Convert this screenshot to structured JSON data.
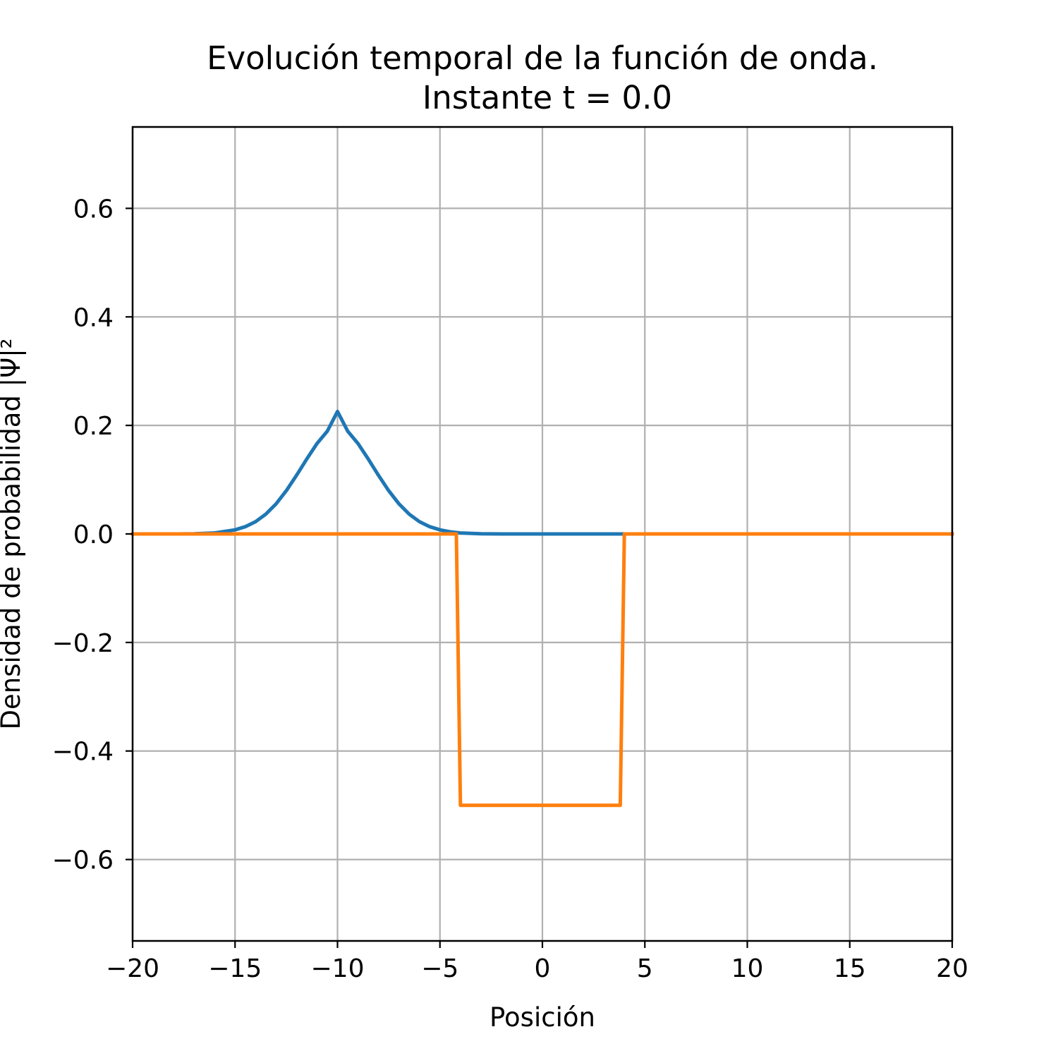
{
  "chart_data": {
    "type": "line",
    "title": "Evolución temporal de la función de onda.",
    "subtitle": "Instante t = 0.0",
    "xlabel": "Posición",
    "ylabel": "Densidad de probabilidad |Ψ|²",
    "xlim": [
      -20,
      20
    ],
    "ylim": [
      -0.75,
      0.75
    ],
    "xticks": [
      -20,
      -15,
      -10,
      -5,
      0,
      5,
      10,
      15,
      20
    ],
    "xtick_labels": [
      "−20",
      "−15",
      "−10",
      "−5",
      "0",
      "5",
      "10",
      "15",
      "20"
    ],
    "yticks": [
      -0.6,
      -0.4,
      -0.2,
      0.0,
      0.2,
      0.4,
      0.6
    ],
    "ytick_labels": [
      "−0.6",
      "−0.4",
      "−0.2",
      "0.0",
      "0.2",
      "0.4",
      "0.6"
    ],
    "grid": true,
    "series": [
      {
        "color": "#1f77b4",
        "x": [
          -20,
          -18,
          -17,
          -16,
          -15,
          -14.5,
          -14,
          -13.5,
          -13,
          -12.5,
          -12,
          -11.5,
          -11,
          -10.5,
          -10,
          -9.5,
          -9,
          -8.5,
          -8,
          -7.5,
          -7,
          -6.5,
          -6,
          -5.5,
          -5,
          -4.5,
          -4,
          -3,
          -2,
          0,
          4
        ],
        "y": [
          0.0,
          0.0,
          0.0003,
          0.0018,
          0.0075,
          0.0134,
          0.0226,
          0.0364,
          0.0554,
          0.0797,
          0.108,
          0.1381,
          0.1665,
          0.1893,
          0.2257,
          0.1893,
          0.1665,
          0.1381,
          0.108,
          0.0797,
          0.0554,
          0.0364,
          0.0226,
          0.0134,
          0.0075,
          0.0039,
          0.0018,
          0.0003,
          0.0,
          0.0,
          0.0
        ]
      },
      {
        "color": "#ff7f0e",
        "x": [
          -20,
          -4.2,
          -4.0,
          3.8,
          4.0,
          20
        ],
        "y": [
          0.0,
          0.0,
          -0.5,
          -0.5,
          0.0,
          0.0
        ]
      }
    ]
  }
}
